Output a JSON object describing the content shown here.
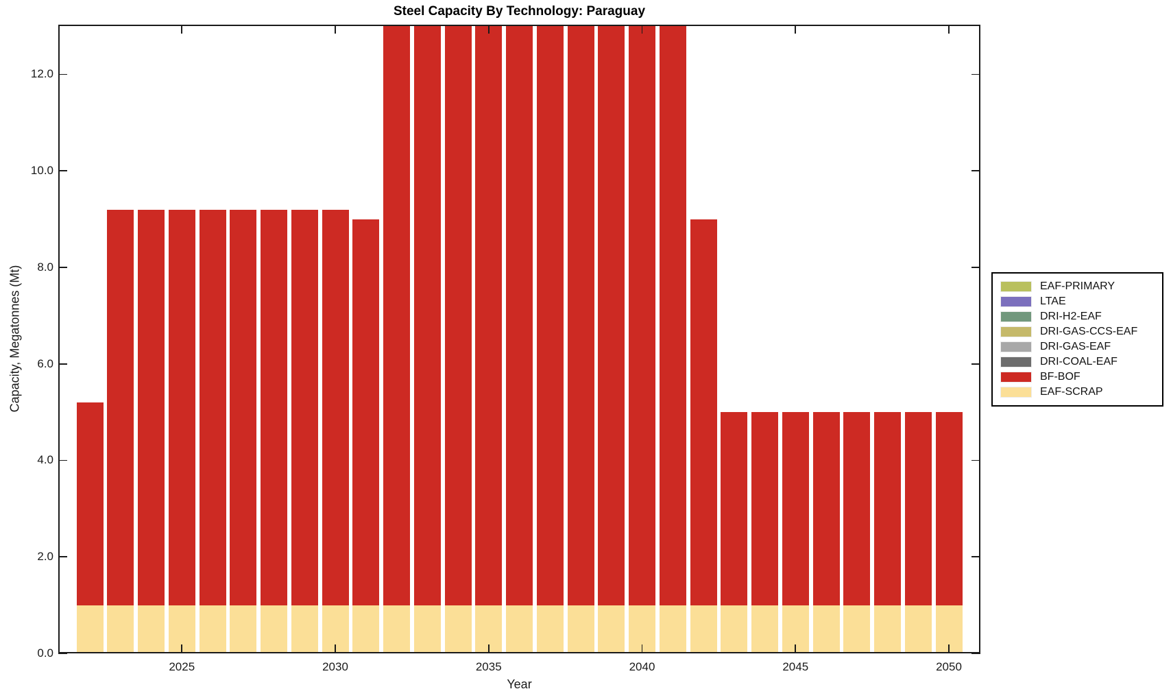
{
  "chart_data": {
    "type": "bar",
    "stacked": true,
    "title": "Steel Capacity By Technology: Paraguay",
    "xlabel": "Year",
    "ylabel": "Capacity, Megatonnes (Mt)",
    "x": [
      2022,
      2023,
      2024,
      2025,
      2026,
      2027,
      2028,
      2029,
      2030,
      2031,
      2032,
      2033,
      2034,
      2035,
      2036,
      2037,
      2038,
      2039,
      2040,
      2041,
      2042,
      2043,
      2044,
      2045,
      2046,
      2047,
      2048,
      2049,
      2050
    ],
    "xtick_values": [
      2025,
      2030,
      2035,
      2040,
      2045,
      2050
    ],
    "xtick_labels": [
      "2025",
      "2030",
      "2035",
      "2040",
      "2045",
      "2050"
    ],
    "ytick_values": [
      0,
      2,
      4,
      6,
      8,
      10,
      12
    ],
    "ytick_labels": [
      "0.0",
      "2.0",
      "4.0",
      "6.0",
      "8.0",
      "10.0",
      "12.0"
    ],
    "ylim": [
      0,
      13.03
    ],
    "grid": false,
    "legend_position": "right-outside",
    "series": [
      {
        "name": "EAF-SCRAP",
        "color": "#fbdf97",
        "values": [
          1.0,
          1.0,
          1.0,
          1.0,
          1.0,
          1.0,
          1.0,
          1.0,
          1.0,
          1.0,
          1.0,
          1.0,
          1.0,
          1.0,
          1.0,
          1.0,
          1.0,
          1.0,
          1.0,
          1.0,
          1.0,
          1.0,
          1.0,
          1.0,
          1.0,
          1.0,
          1.0,
          1.0,
          1.0
        ]
      },
      {
        "name": "BF-BOF",
        "color": "#cd2a23",
        "values": [
          4.2,
          8.2,
          8.2,
          8.2,
          8.2,
          8.2,
          8.2,
          8.2,
          8.2,
          8.0,
          12.5,
          12.5,
          12.5,
          12.5,
          12.5,
          12.5,
          12.5,
          12.5,
          12.5,
          12.5,
          8.0,
          4.0,
          4.0,
          4.0,
          4.0,
          4.0,
          4.0,
          4.0,
          4.0
        ]
      }
    ],
    "note": "Bars for 2032-2041 extend above the top of the y-axis and are visually clipped; their on-screen totals exceed 13 Mt.",
    "legend": [
      {
        "label": "EAF-PRIMARY",
        "color": "#b9c05e"
      },
      {
        "label": "LTAE",
        "color": "#7c70bd"
      },
      {
        "label": "DRI-H2-EAF",
        "color": "#72987d"
      },
      {
        "label": "DRI-GAS-CCS-EAF",
        "color": "#c5b96a"
      },
      {
        "label": "DRI-GAS-EAF",
        "color": "#a8a8a8"
      },
      {
        "label": "DRI-COAL-EAF",
        "color": "#6d6d6d"
      },
      {
        "label": "BF-BOF",
        "color": "#cd2a23"
      },
      {
        "label": "EAF-SCRAP",
        "color": "#fbdf97"
      }
    ]
  }
}
